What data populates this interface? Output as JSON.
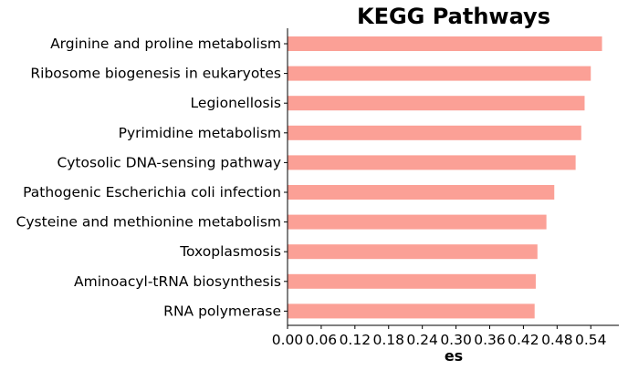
{
  "chart_data": {
    "type": "bar",
    "orientation": "horizontal",
    "title": "KEGG Pathways",
    "xlabel": "es",
    "ylabel": "",
    "categories": [
      "Arginine and proline metabolism",
      "Ribosome biogenesis in eukaryotes",
      "Legionellosis",
      "Pyrimidine metabolism",
      "Cytosolic DNA-sensing pathway",
      "Pathogenic Escherichia coli infection",
      "Cysteine and methionine metabolism",
      "Toxoplasmosis",
      "Aminoacyl-tRNA biosynthesis",
      "RNA polymerase"
    ],
    "values": [
      0.56,
      0.54,
      0.529,
      0.523,
      0.513,
      0.475,
      0.461,
      0.445,
      0.442,
      0.44
    ],
    "xlim": [
      0,
      0.59
    ],
    "xticks": [
      0.0,
      0.06,
      0.12,
      0.18,
      0.24,
      0.3,
      0.36,
      0.42,
      0.48,
      0.54
    ],
    "xtick_labels": [
      "0.00",
      "0.06",
      "0.12",
      "0.18",
      "0.24",
      "0.30",
      "0.36",
      "0.42",
      "0.48",
      "0.54"
    ],
    "bar_color": "#fba096",
    "grid": false,
    "legend": "none"
  }
}
